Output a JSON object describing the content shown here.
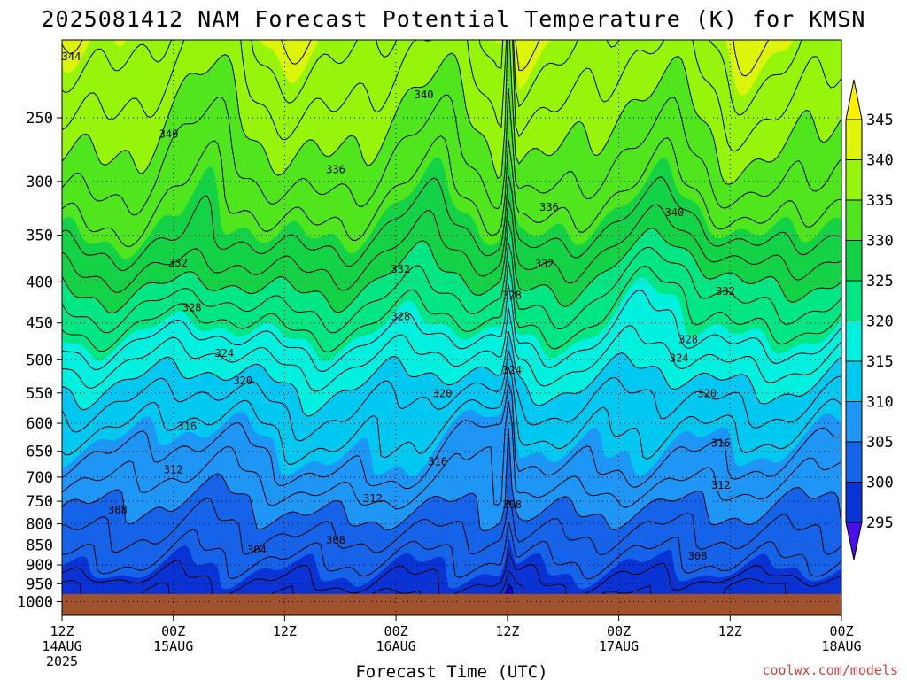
{
  "chart_data": {
    "type": "contour",
    "title": "2025081412 NAM Forecast Potential Temperature (K) for KMSN",
    "xlabel": "Forecast Time (UTC)",
    "ylabel": "",
    "credit": "coolwx.com/models",
    "x_ticks": [
      {
        "l1": "12Z",
        "l2": "14AUG",
        "l3": "2025",
        "hours": 0
      },
      {
        "l1": "00Z",
        "l2": "15AUG",
        "l3": "",
        "hours": 12
      },
      {
        "l1": "12Z",
        "l2": "",
        "l3": "",
        "hours": 24
      },
      {
        "l1": "00Z",
        "l2": "16AUG",
        "l3": "",
        "hours": 36
      },
      {
        "l1": "12Z",
        "l2": "",
        "l3": "",
        "hours": 48
      },
      {
        "l1": "00Z",
        "l2": "17AUG",
        "l3": "",
        "hours": 60
      },
      {
        "l1": "12Z",
        "l2": "",
        "l3": "",
        "hours": 72
      },
      {
        "l1": "00Z",
        "l2": "18AUG",
        "l3": "",
        "hours": 84
      }
    ],
    "xlim_hours": [
      0,
      84
    ],
    "y_axis": {
      "scale": "log-pressure",
      "ticks": [
        250,
        300,
        350,
        400,
        450,
        500,
        550,
        600,
        650,
        700,
        750,
        800,
        850,
        900,
        950,
        1000
      ],
      "top": 200,
      "bottom": 1040,
      "ground_level_hpa": 978
    },
    "grid": true,
    "contour_interval_K": 2,
    "fill_interval_K": 5,
    "colorbar": {
      "labels": [
        "295",
        "300",
        "305",
        "310",
        "315",
        "320",
        "325",
        "330",
        "335",
        "340",
        "345"
      ],
      "levels": [
        290,
        295,
        300,
        305,
        310,
        315,
        320,
        325,
        330,
        335,
        340,
        345,
        350
      ],
      "colors": [
        "#4b0ee8",
        "#0000d2",
        "#0a33d6",
        "#1463e8",
        "#1e96f5",
        "#00c8f0",
        "#00f0e0",
        "#00e682",
        "#14d246",
        "#50e61e",
        "#96f50a",
        "#dcf50a",
        "#fff000"
      ]
    },
    "ground_color": "#a0522d",
    "profile": [
      {
        "p": 978,
        "theta": 302.5
      },
      {
        "p": 960,
        "theta": 303.5
      },
      {
        "p": 930,
        "theta": 304.5
      },
      {
        "p": 900,
        "theta": 305.5
      },
      {
        "p": 850,
        "theta": 307
      },
      {
        "p": 800,
        "theta": 308.5
      },
      {
        "p": 750,
        "theta": 310
      },
      {
        "p": 700,
        "theta": 312
      },
      {
        "p": 650,
        "theta": 313.8
      },
      {
        "p": 600,
        "theta": 316
      },
      {
        "p": 550,
        "theta": 318.5
      },
      {
        "p": 500,
        "theta": 322
      },
      {
        "p": 450,
        "theta": 326
      },
      {
        "p": 400,
        "theta": 330
      },
      {
        "p": 350,
        "theta": 334
      },
      {
        "p": 300,
        "theta": 337.5
      },
      {
        "p": 250,
        "theta": 340.5
      },
      {
        "p": 200,
        "theta": 344
      }
    ],
    "contour_labels": [
      {
        "text": "344",
        "hours": 1,
        "p": 210
      },
      {
        "text": "340",
        "hours": 39,
        "p": 234
      },
      {
        "text": "340",
        "hours": 11.5,
        "p": 262
      },
      {
        "text": "336",
        "hours": 29.5,
        "p": 290
      },
      {
        "text": "336",
        "hours": 52.5,
        "p": 323
      },
      {
        "text": "340",
        "hours": 66,
        "p": 328
      },
      {
        "text": "332",
        "hours": 12.5,
        "p": 379
      },
      {
        "text": "332",
        "hours": 36.5,
        "p": 386
      },
      {
        "text": "332",
        "hours": 52,
        "p": 380
      },
      {
        "text": "332",
        "hours": 71.5,
        "p": 411
      },
      {
        "text": "328",
        "hours": 48.5,
        "p": 416
      },
      {
        "text": "328",
        "hours": 14,
        "p": 431
      },
      {
        "text": "328",
        "hours": 36.5,
        "p": 442
      },
      {
        "text": "328",
        "hours": 67.5,
        "p": 472
      },
      {
        "text": "324",
        "hours": 17.5,
        "p": 491
      },
      {
        "text": "324",
        "hours": 48.5,
        "p": 515
      },
      {
        "text": "324",
        "hours": 66.5,
        "p": 498
      },
      {
        "text": "320",
        "hours": 19.5,
        "p": 531
      },
      {
        "text": "320",
        "hours": 41,
        "p": 551
      },
      {
        "text": "320",
        "hours": 69.5,
        "p": 551
      },
      {
        "text": "316",
        "hours": 13.5,
        "p": 605
      },
      {
        "text": "316",
        "hours": 71,
        "p": 635
      },
      {
        "text": "316",
        "hours": 40.5,
        "p": 670
      },
      {
        "text": "312",
        "hours": 12,
        "p": 685
      },
      {
        "text": "312",
        "hours": 71,
        "p": 716
      },
      {
        "text": "312",
        "hours": 33.5,
        "p": 744
      },
      {
        "text": "308",
        "hours": 48.5,
        "p": 757
      },
      {
        "text": "308",
        "hours": 6,
        "p": 769
      },
      {
        "text": "308",
        "hours": 29.5,
        "p": 838
      },
      {
        "text": "304",
        "hours": 21,
        "p": 862
      },
      {
        "text": "308",
        "hours": 68.5,
        "p": 878
      }
    ]
  }
}
